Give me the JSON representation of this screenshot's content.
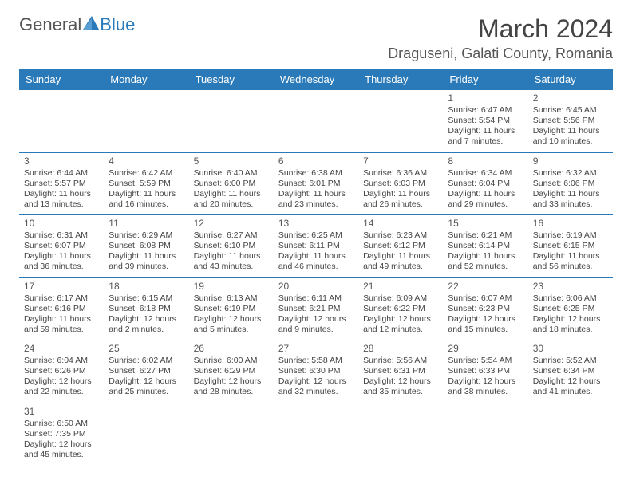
{
  "logo": {
    "text_a": "General",
    "text_b": "Blue"
  },
  "title": "March 2024",
  "location": "Draguseni, Galati County, Romania",
  "colors": {
    "primary": "#2a7ab9",
    "bg": "#ffffff",
    "text": "#444444"
  },
  "day_labels": [
    "Sunday",
    "Monday",
    "Tuesday",
    "Wednesday",
    "Thursday",
    "Friday",
    "Saturday"
  ],
  "weeks": [
    [
      null,
      null,
      null,
      null,
      null,
      {
        "day": "1",
        "sunrise": "Sunrise: 6:47 AM",
        "sunset": "Sunset: 5:54 PM",
        "daylight": "Daylight: 11 hours and 7 minutes."
      },
      {
        "day": "2",
        "sunrise": "Sunrise: 6:45 AM",
        "sunset": "Sunset: 5:56 PM",
        "daylight": "Daylight: 11 hours and 10 minutes."
      }
    ],
    [
      {
        "day": "3",
        "sunrise": "Sunrise: 6:44 AM",
        "sunset": "Sunset: 5:57 PM",
        "daylight": "Daylight: 11 hours and 13 minutes."
      },
      {
        "day": "4",
        "sunrise": "Sunrise: 6:42 AM",
        "sunset": "Sunset: 5:59 PM",
        "daylight": "Daylight: 11 hours and 16 minutes."
      },
      {
        "day": "5",
        "sunrise": "Sunrise: 6:40 AM",
        "sunset": "Sunset: 6:00 PM",
        "daylight": "Daylight: 11 hours and 20 minutes."
      },
      {
        "day": "6",
        "sunrise": "Sunrise: 6:38 AM",
        "sunset": "Sunset: 6:01 PM",
        "daylight": "Daylight: 11 hours and 23 minutes."
      },
      {
        "day": "7",
        "sunrise": "Sunrise: 6:36 AM",
        "sunset": "Sunset: 6:03 PM",
        "daylight": "Daylight: 11 hours and 26 minutes."
      },
      {
        "day": "8",
        "sunrise": "Sunrise: 6:34 AM",
        "sunset": "Sunset: 6:04 PM",
        "daylight": "Daylight: 11 hours and 29 minutes."
      },
      {
        "day": "9",
        "sunrise": "Sunrise: 6:32 AM",
        "sunset": "Sunset: 6:06 PM",
        "daylight": "Daylight: 11 hours and 33 minutes."
      }
    ],
    [
      {
        "day": "10",
        "sunrise": "Sunrise: 6:31 AM",
        "sunset": "Sunset: 6:07 PM",
        "daylight": "Daylight: 11 hours and 36 minutes."
      },
      {
        "day": "11",
        "sunrise": "Sunrise: 6:29 AM",
        "sunset": "Sunset: 6:08 PM",
        "daylight": "Daylight: 11 hours and 39 minutes."
      },
      {
        "day": "12",
        "sunrise": "Sunrise: 6:27 AM",
        "sunset": "Sunset: 6:10 PM",
        "daylight": "Daylight: 11 hours and 43 minutes."
      },
      {
        "day": "13",
        "sunrise": "Sunrise: 6:25 AM",
        "sunset": "Sunset: 6:11 PM",
        "daylight": "Daylight: 11 hours and 46 minutes."
      },
      {
        "day": "14",
        "sunrise": "Sunrise: 6:23 AM",
        "sunset": "Sunset: 6:12 PM",
        "daylight": "Daylight: 11 hours and 49 minutes."
      },
      {
        "day": "15",
        "sunrise": "Sunrise: 6:21 AM",
        "sunset": "Sunset: 6:14 PM",
        "daylight": "Daylight: 11 hours and 52 minutes."
      },
      {
        "day": "16",
        "sunrise": "Sunrise: 6:19 AM",
        "sunset": "Sunset: 6:15 PM",
        "daylight": "Daylight: 11 hours and 56 minutes."
      }
    ],
    [
      {
        "day": "17",
        "sunrise": "Sunrise: 6:17 AM",
        "sunset": "Sunset: 6:16 PM",
        "daylight": "Daylight: 11 hours and 59 minutes."
      },
      {
        "day": "18",
        "sunrise": "Sunrise: 6:15 AM",
        "sunset": "Sunset: 6:18 PM",
        "daylight": "Daylight: 12 hours and 2 minutes."
      },
      {
        "day": "19",
        "sunrise": "Sunrise: 6:13 AM",
        "sunset": "Sunset: 6:19 PM",
        "daylight": "Daylight: 12 hours and 5 minutes."
      },
      {
        "day": "20",
        "sunrise": "Sunrise: 6:11 AM",
        "sunset": "Sunset: 6:21 PM",
        "daylight": "Daylight: 12 hours and 9 minutes."
      },
      {
        "day": "21",
        "sunrise": "Sunrise: 6:09 AM",
        "sunset": "Sunset: 6:22 PM",
        "daylight": "Daylight: 12 hours and 12 minutes."
      },
      {
        "day": "22",
        "sunrise": "Sunrise: 6:07 AM",
        "sunset": "Sunset: 6:23 PM",
        "daylight": "Daylight: 12 hours and 15 minutes."
      },
      {
        "day": "23",
        "sunrise": "Sunrise: 6:06 AM",
        "sunset": "Sunset: 6:25 PM",
        "daylight": "Daylight: 12 hours and 18 minutes."
      }
    ],
    [
      {
        "day": "24",
        "sunrise": "Sunrise: 6:04 AM",
        "sunset": "Sunset: 6:26 PM",
        "daylight": "Daylight: 12 hours and 22 minutes."
      },
      {
        "day": "25",
        "sunrise": "Sunrise: 6:02 AM",
        "sunset": "Sunset: 6:27 PM",
        "daylight": "Daylight: 12 hours and 25 minutes."
      },
      {
        "day": "26",
        "sunrise": "Sunrise: 6:00 AM",
        "sunset": "Sunset: 6:29 PM",
        "daylight": "Daylight: 12 hours and 28 minutes."
      },
      {
        "day": "27",
        "sunrise": "Sunrise: 5:58 AM",
        "sunset": "Sunset: 6:30 PM",
        "daylight": "Daylight: 12 hours and 32 minutes."
      },
      {
        "day": "28",
        "sunrise": "Sunrise: 5:56 AM",
        "sunset": "Sunset: 6:31 PM",
        "daylight": "Daylight: 12 hours and 35 minutes."
      },
      {
        "day": "29",
        "sunrise": "Sunrise: 5:54 AM",
        "sunset": "Sunset: 6:33 PM",
        "daylight": "Daylight: 12 hours and 38 minutes."
      },
      {
        "day": "30",
        "sunrise": "Sunrise: 5:52 AM",
        "sunset": "Sunset: 6:34 PM",
        "daylight": "Daylight: 12 hours and 41 minutes."
      }
    ],
    [
      {
        "day": "31",
        "sunrise": "Sunrise: 6:50 AM",
        "sunset": "Sunset: 7:35 PM",
        "daylight": "Daylight: 12 hours and 45 minutes."
      },
      null,
      null,
      null,
      null,
      null,
      null
    ]
  ]
}
